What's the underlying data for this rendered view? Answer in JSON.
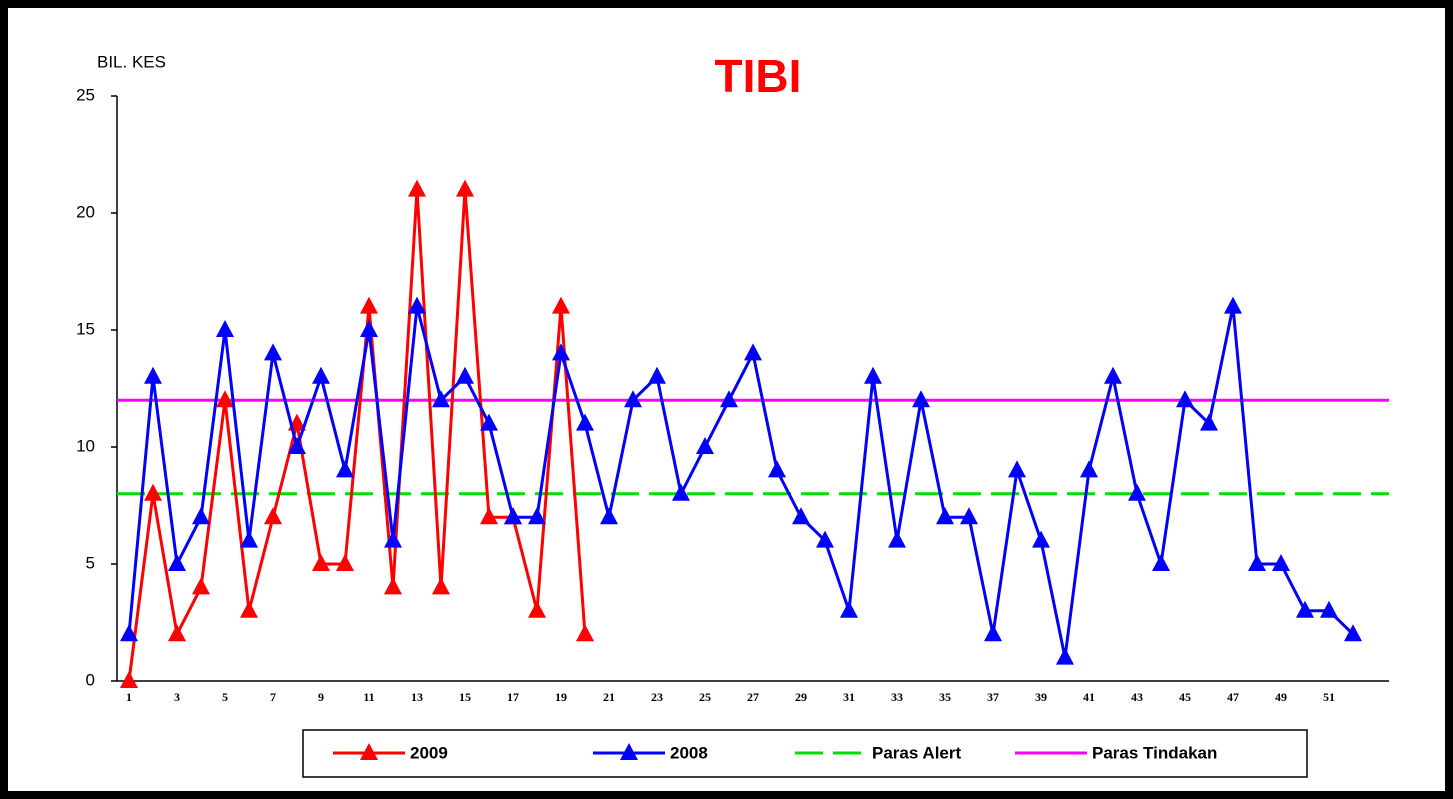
{
  "chart_data": {
    "type": "line",
    "title": "TIBI",
    "y_label": "BIL. KES",
    "categories": [
      "1",
      null,
      "3",
      null,
      "5",
      null,
      "7",
      null,
      "9",
      null,
      "11",
      null,
      "13",
      null,
      "15",
      null,
      "17",
      null,
      "19",
      null,
      "21",
      null,
      "23",
      null,
      "25",
      null,
      "27",
      null,
      "29",
      null,
      "31",
      null,
      "33",
      null,
      "35",
      null,
      "37",
      null,
      "39",
      null,
      "41",
      null,
      "43",
      null,
      "45",
      null,
      "47",
      null,
      "49",
      null,
      "51",
      null,
      null
    ],
    "series": [
      {
        "name": "2009",
        "color": "#ff0000",
        "marker": "triangle",
        "values": [
          0,
          8,
          2,
          4,
          12,
          3,
          7,
          11,
          5,
          5,
          16,
          4,
          21,
          4,
          21,
          7,
          7,
          3,
          16,
          2,
          null,
          null,
          null,
          null,
          null,
          null,
          null,
          null,
          null,
          null,
          null,
          null,
          null,
          null,
          null,
          null,
          null,
          null,
          null,
          null,
          null,
          null,
          null,
          null,
          null,
          null,
          null,
          null,
          null,
          null,
          null,
          null,
          null
        ]
      },
      {
        "name": "2008",
        "color": "#0000ff",
        "marker": "triangle",
        "values": [
          2,
          13,
          5,
          7,
          15,
          6,
          14,
          10,
          13,
          9,
          15,
          6,
          16,
          12,
          13,
          11,
          7,
          7,
          14,
          11,
          7,
          12,
          13,
          8,
          10,
          12,
          14,
          9,
          7,
          6,
          3,
          13,
          6,
          12,
          7,
          7,
          2,
          9,
          6,
          1,
          9,
          13,
          8,
          5,
          12,
          11,
          16,
          5,
          5,
          3,
          3,
          2,
          null
        ]
      }
    ],
    "reference_lines": [
      {
        "name": "Paras Alert",
        "value": 8,
        "color": "#00dd00",
        "style": "dashed"
      },
      {
        "name": "Paras Tindakan",
        "value": 12,
        "color": "#ff00ff",
        "style": "solid"
      }
    ],
    "ylim": [
      0,
      25
    ],
    "yticks": [
      0,
      5,
      10,
      15,
      20,
      25
    ],
    "legend": "bottom"
  }
}
